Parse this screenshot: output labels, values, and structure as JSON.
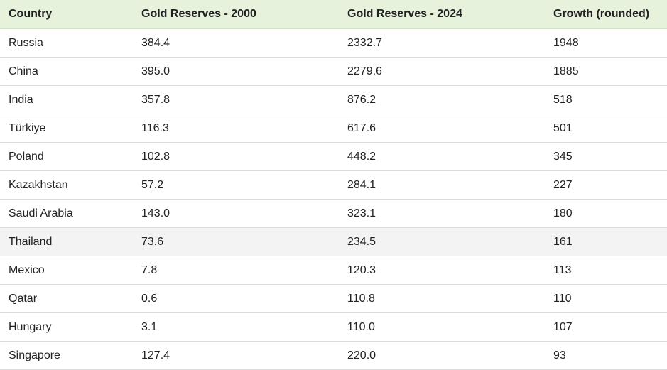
{
  "table": {
    "header": [
      "Country",
      "Gold Reserves - 2000",
      "Gold Reserves - 2024",
      "Growth (rounded)"
    ],
    "rows": [
      [
        "Russia",
        "384.4",
        "2332.7",
        "1948"
      ],
      [
        "China",
        "395.0",
        "2279.6",
        "1885"
      ],
      [
        "India",
        "357.8",
        "876.2",
        "518"
      ],
      [
        "Türkiye",
        "116.3",
        "617.6",
        "501"
      ],
      [
        "Poland",
        "102.8",
        "448.2",
        "345"
      ],
      [
        "Kazakhstan",
        "57.2",
        "284.1",
        "227"
      ],
      [
        "Saudi Arabia",
        "143.0",
        "323.1",
        "180"
      ],
      [
        "Thailand",
        "73.6",
        "234.5",
        "161"
      ],
      [
        "Mexico",
        "7.8",
        "120.3",
        "113"
      ],
      [
        "Qatar",
        "0.6",
        "110.8",
        "110"
      ],
      [
        "Hungary",
        "3.1",
        "110.0",
        "107"
      ],
      [
        "Singapore",
        "127.4",
        "220.0",
        "93"
      ]
    ]
  }
}
